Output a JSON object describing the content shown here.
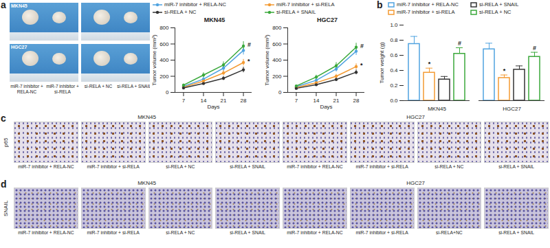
{
  "photos": {
    "panel": "a",
    "rows": [
      "MKN45",
      "HGC27"
    ],
    "columns": [
      "miR-7 inhibitor + RELA-NC",
      "miR-7 inhibitor + si-RELA",
      "si-RELA + NC",
      "si-RELA + SNAIL"
    ]
  },
  "chart_data": [
    {
      "type": "line",
      "title": "MKN45",
      "x_label": "Days",
      "y_label": "Tumor volume (mm³)",
      "x": [
        7,
        14,
        21,
        28
      ],
      "xlim": [
        4,
        31
      ],
      "xticks": [
        7,
        14,
        21,
        28
      ],
      "ylim": [
        0,
        800
      ],
      "yticks": [
        0,
        200,
        400,
        600,
        800
      ],
      "marker": "circle",
      "legend": "top",
      "series": [
        {
          "name": "miR-7 inhibitor + RELA-NC",
          "color": "#4fa3e0",
          "values": [
            75,
            165,
            300,
            520
          ],
          "errors": [
            12,
            25,
            40,
            55
          ]
        },
        {
          "name": "miR-7 inhibitor + si-RELA",
          "color": "#f39a32",
          "values": [
            65,
            140,
            240,
            370
          ],
          "errors": [
            10,
            20,
            30,
            40
          ]
        },
        {
          "name": "si-RELA + NC",
          "color": "#333333",
          "values": [
            55,
            110,
            175,
            280
          ],
          "errors": [
            8,
            15,
            25,
            35
          ]
        },
        {
          "name": "si-RELA + SNAIL",
          "color": "#3aa83a",
          "values": [
            90,
            215,
            340,
            575
          ],
          "errors": [
            15,
            30,
            40,
            55
          ]
        }
      ],
      "annotations": [
        {
          "series": "miR-7 inhibitor + si-RELA",
          "x": 28,
          "text": "*"
        },
        {
          "series": "si-RELA + SNAIL",
          "x": 28,
          "text": "#"
        }
      ]
    },
    {
      "type": "line",
      "title": "HGC27",
      "x_label": "Days",
      "y_label": "Tumor volume (mm³)",
      "x": [
        7,
        14,
        21,
        28
      ],
      "xlim": [
        4,
        31
      ],
      "xticks": [
        7,
        14,
        21,
        28
      ],
      "ylim": [
        0,
        800
      ],
      "yticks": [
        0,
        200,
        400,
        600,
        800
      ],
      "marker": "circle",
      "series": [
        {
          "name": "miR-7 inhibitor + RELA-NC",
          "color": "#4fa3e0",
          "values": [
            70,
            150,
            290,
            510
          ],
          "errors": [
            10,
            20,
            35,
            50
          ]
        },
        {
          "name": "miR-7 inhibitor + si-RELA",
          "color": "#f39a32",
          "values": [
            60,
            120,
            200,
            320
          ],
          "errors": [
            10,
            18,
            25,
            35
          ]
        },
        {
          "name": "si-RELA + NC",
          "color": "#333333",
          "values": [
            50,
            95,
            160,
            250
          ],
          "errors": [
            8,
            12,
            20,
            30
          ]
        },
        {
          "name": "si-RELA + SNAIL",
          "color": "#3aa83a",
          "values": [
            80,
            190,
            330,
            560
          ],
          "errors": [
            12,
            25,
            40,
            50
          ]
        }
      ],
      "annotations": [
        {
          "series": "miR-7 inhibitor + si-RELA",
          "x": 28,
          "text": "*"
        },
        {
          "series": "si-RELA + SNAIL",
          "x": 28,
          "text": "#"
        }
      ]
    },
    {
      "type": "bar",
      "panel": "b",
      "y_label": "Tumor weight (g)",
      "categories": [
        "MKN45",
        "HGC27"
      ],
      "ylim": [
        0,
        1
      ],
      "yticks": [
        {
          "value": 0,
          "label": "0.0"
        },
        0.2,
        0.4,
        0.6,
        0.8,
        {
          "value": 1,
          "label": "1.0"
        }
      ],
      "legend": "top",
      "series": [
        {
          "name": "miR-7 inhibitor + RELA-NC",
          "color": "#4fa3e0",
          "values": [
            0.75,
            0.68
          ],
          "errors": [
            0.1,
            0.08
          ]
        },
        {
          "name": "miR-7 inhibitor + si-RELA",
          "color": "#f39a32",
          "values": [
            0.37,
            0.3
          ],
          "errors": [
            0.06,
            0.04
          ]
        },
        {
          "name": "si-RELA + SNAIL",
          "color": "#333333",
          "values": [
            0.28,
            0.41
          ],
          "errors": [
            0.04,
            0.05
          ]
        },
        {
          "name": "si-RELA + NC",
          "color": "#3aa83a",
          "values": [
            0.62,
            0.58
          ],
          "errors": [
            0.08,
            0.06
          ]
        }
      ],
      "annotations": [
        {
          "series": "miR-7 inhibitor + si-RELA",
          "category": "MKN45",
          "text": "*"
        },
        {
          "series": "si-RELA + NC",
          "category": "MKN45",
          "text": "#"
        },
        {
          "series": "miR-7 inhibitor + si-RELA",
          "category": "HGC27",
          "text": "*"
        },
        {
          "series": "si-RELA + NC",
          "category": "HGC27",
          "text": "#"
        }
      ]
    }
  ],
  "ihc": [
    {
      "panel": "c",
      "marker": "p65",
      "groups": [
        {
          "name": "MKN45",
          "captions": [
            "miR-7 inhibitor + RELA-NC",
            "miR-7 inhibitor + si-RELA",
            "si-RELA + NC",
            "si-RELA + SNAIL"
          ]
        },
        {
          "name": "HGC27",
          "captions": [
            "miR-7 inhibitor + RELA-NC",
            "miR-7 inhibitor + si-RELA",
            "si-RELA + NC",
            "si-RELA + SNAIL"
          ]
        }
      ]
    },
    {
      "panel": "d",
      "marker": "SNAIL",
      "groups": [
        {
          "name": "MKN45",
          "captions": [
            "miR-7 inhibitor + RELA-NC",
            "miR-7 inhibitor + si-RELA",
            "si-RELA + NC",
            "si-RELA + SNAIL"
          ]
        },
        {
          "name": "HGC27",
          "captions": [
            "miR-7 inhibitor + RELA-NC",
            "miR-7 inhibitor + si-RELA",
            "si-RELA+NC",
            "si-RELA + SNAIL"
          ]
        }
      ]
    }
  ]
}
